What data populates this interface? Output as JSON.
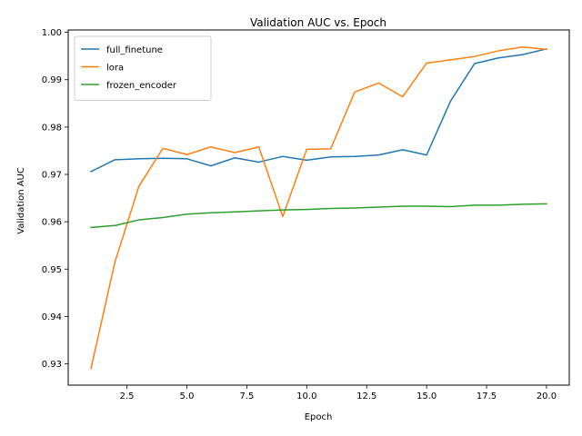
{
  "chart_data": {
    "type": "line",
    "title": "Validation AUC vs. Epoch",
    "xlabel": "Epoch",
    "ylabel": "Validation AUC",
    "xlim": [
      0.05,
      20.95
    ],
    "ylim": [
      0.9255,
      1.0005
    ],
    "xticks": [
      2.5,
      5.0,
      7.5,
      10.0,
      12.5,
      15.0,
      17.5,
      20.0
    ],
    "xtick_labels": [
      "2.5",
      "5.0",
      "7.5",
      "10.0",
      "12.5",
      "15.0",
      "17.5",
      "20.0"
    ],
    "yticks": [
      0.93,
      0.94,
      0.95,
      0.96,
      0.97,
      0.98,
      0.99,
      1.0
    ],
    "ytick_labels": [
      "0.93",
      "0.94",
      "0.95",
      "0.96",
      "0.97",
      "0.98",
      "0.99",
      "1.00"
    ],
    "grid": false,
    "legend_position": "top-left",
    "x": [
      1,
      2,
      3,
      4,
      5,
      6,
      7,
      8,
      9,
      10,
      11,
      12,
      13,
      14,
      15,
      16,
      17,
      18,
      19,
      20
    ],
    "series": [
      {
        "name": "full_finetune",
        "color": "#1f77b4",
        "values": [
          0.9706,
          0.9731,
          0.9733,
          0.9734,
          0.9733,
          0.9718,
          0.9735,
          0.9726,
          0.9738,
          0.973,
          0.9737,
          0.9738,
          0.9741,
          0.9752,
          0.9741,
          0.9855,
          0.9934,
          0.9946,
          0.9953,
          0.9965
        ]
      },
      {
        "name": "lora",
        "color": "#ff7f0e",
        "values": [
          0.929,
          0.9515,
          0.9675,
          0.9755,
          0.9742,
          0.9758,
          0.9746,
          0.9758,
          0.9611,
          0.9753,
          0.9754,
          0.9874,
          0.9893,
          0.9864,
          0.9935,
          0.9942,
          0.9949,
          0.9961,
          0.9969,
          0.9964
        ]
      },
      {
        "name": "frozen_encoder",
        "color": "#2ca02c",
        "values": [
          0.9588,
          0.9592,
          0.9604,
          0.9609,
          0.9616,
          0.9619,
          0.9621,
          0.9623,
          0.9625,
          0.9626,
          0.9628,
          0.9629,
          0.9631,
          0.9633,
          0.9633,
          0.9632,
          0.9635,
          0.9635,
          0.9637,
          0.9638
        ]
      }
    ]
  }
}
